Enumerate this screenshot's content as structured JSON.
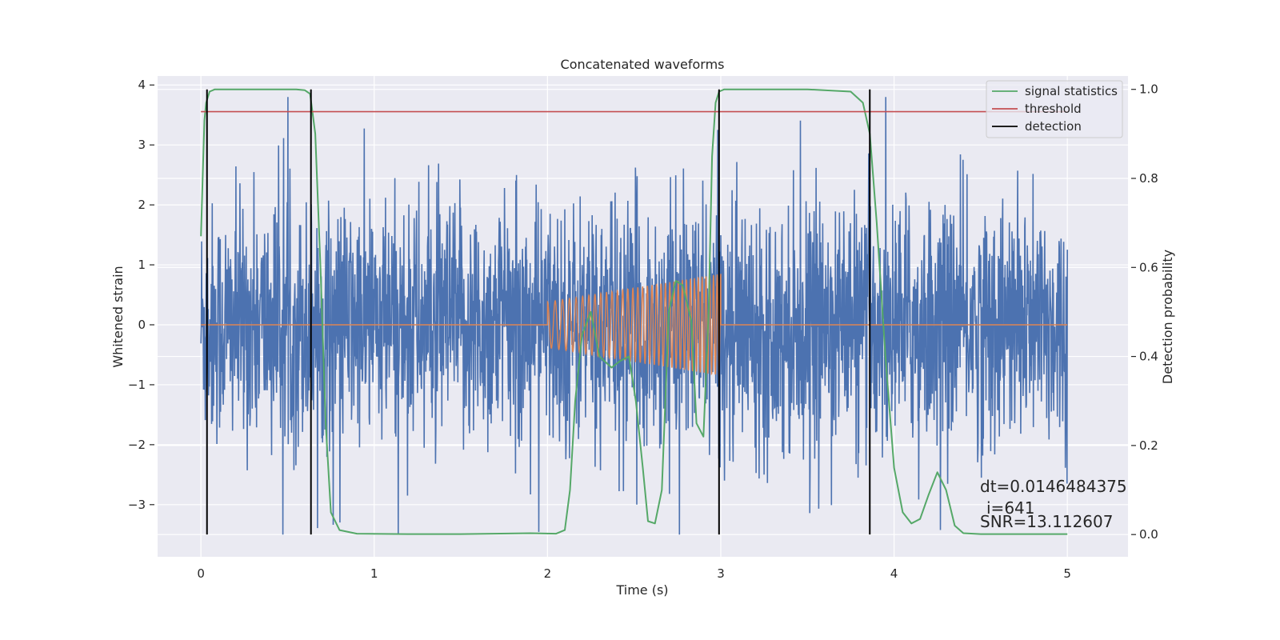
{
  "chart_data": {
    "type": "line",
    "title": "Concatenated waveforms",
    "xlabel": "Time (s)",
    "ylabel": "Whitened strain",
    "ylabel_right": "Detection probability",
    "xlim": [
      -0.25,
      5.35
    ],
    "ylim": [
      -3.87,
      4.15
    ],
    "ylim_right": [
      -0.05,
      1.03
    ],
    "xticks": [
      0,
      1,
      2,
      3,
      4,
      5
    ],
    "yticks": [
      -3,
      -2,
      -1,
      0,
      1,
      2,
      3,
      4
    ],
    "yticks_right": [
      0.0,
      0.2,
      0.4,
      0.6,
      0.8,
      1.0
    ],
    "xtick_labels": [
      "0",
      "1",
      "2",
      "3",
      "4",
      "5"
    ],
    "ytick_labels": [
      "−3",
      "−2",
      "−1",
      "0",
      "1",
      "2",
      "3",
      "4"
    ],
    "ytick_right_labels": [
      "0.0",
      "0.2",
      "0.4",
      "0.6",
      "0.8",
      "1.0"
    ],
    "grid": true,
    "legend_position": "top-right",
    "colors": {
      "background": "#eaeaf2",
      "strain": "#4c72b0",
      "waveform": "#dd8452",
      "signal_statistics": "#55a868",
      "threshold": "#c44e52",
      "detection": "#000000",
      "grid": "#ffffff"
    },
    "series": [
      {
        "name": "",
        "axis": "left",
        "kind": "noise",
        "x_range": [
          0,
          5
        ],
        "amplitude_std": 1.0,
        "spike_range": [
          -3.5,
          3.8
        ]
      },
      {
        "name": "",
        "axis": "left",
        "kind": "chirp",
        "x": [
          0,
          2.0,
          2.0,
          3.0,
          3.0,
          5.0
        ],
        "envelope": [
          0,
          0,
          0.38,
          0.85,
          0,
          0
        ]
      },
      {
        "name": "signal statistics",
        "axis": "right",
        "x": [
          0,
          0.01,
          0.02,
          0.03,
          0.05,
          0.08,
          0.15,
          0.35,
          0.55,
          0.6,
          0.63,
          0.66,
          0.69,
          0.72,
          0.75,
          0.8,
          0.9,
          1.2,
          1.5,
          1.9,
          2.05,
          2.1,
          2.13,
          2.16,
          2.2,
          2.25,
          2.3,
          2.37,
          2.42,
          2.47,
          2.51,
          2.55,
          2.58,
          2.62,
          2.66,
          2.7,
          2.74,
          2.78,
          2.83,
          2.86,
          2.9,
          2.93,
          2.95,
          2.97,
          2.99,
          3.02,
          3.1,
          3.5,
          3.75,
          3.82,
          3.86,
          3.9,
          3.95,
          4.0,
          4.05,
          4.1,
          4.15,
          4.2,
          4.25,
          4.3,
          4.35,
          4.4,
          4.5,
          5.0
        ],
        "y": [
          0.67,
          0.8,
          0.93,
          0.97,
          0.995,
          1.0,
          1.0,
          1.0,
          1.0,
          0.998,
          0.99,
          0.9,
          0.6,
          0.25,
          0.05,
          0.01,
          0.002,
          0.001,
          0.001,
          0.003,
          0.002,
          0.01,
          0.1,
          0.3,
          0.45,
          0.5,
          0.4,
          0.375,
          0.39,
          0.4,
          0.3,
          0.15,
          0.03,
          0.025,
          0.1,
          0.5,
          0.57,
          0.56,
          0.48,
          0.25,
          0.22,
          0.5,
          0.85,
          0.97,
          0.995,
          1.0,
          1.0,
          1.0,
          0.995,
          0.97,
          0.9,
          0.7,
          0.4,
          0.15,
          0.05,
          0.025,
          0.035,
          0.09,
          0.14,
          0.1,
          0.02,
          0.003,
          0.001,
          0.001
        ]
      },
      {
        "name": "threshold",
        "axis": "right",
        "x": [
          0,
          5
        ],
        "y": [
          0.95,
          0.95
        ]
      },
      {
        "name": "detection",
        "axis": "right",
        "type": "vlines",
        "x": [
          0.035,
          0.635,
          2.99,
          3.86
        ],
        "ymin": 0.0,
        "ymax": 1.0
      }
    ],
    "legend": [
      "signal statistics",
      "threshold",
      "detection"
    ],
    "annotations": [
      "dt=0.0146484375",
      "i=641",
      "SNR=13.112607"
    ]
  }
}
